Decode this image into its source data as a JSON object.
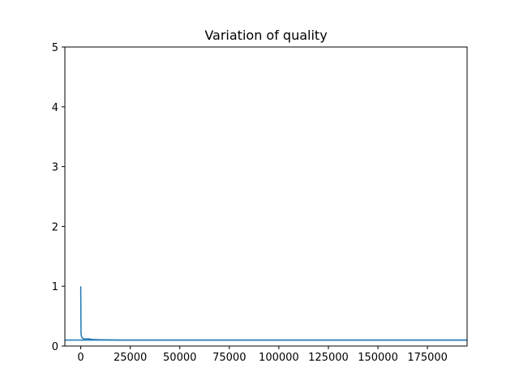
{
  "chart_data": {
    "type": "line",
    "title": "Variation of quality",
    "xlabel": "",
    "ylabel": "",
    "xlim": [
      -8000,
      195000
    ],
    "ylim": [
      0,
      5
    ],
    "xticks": [
      0,
      25000,
      50000,
      75000,
      100000,
      125000,
      150000,
      175000
    ],
    "yticks": [
      0,
      1,
      2,
      3,
      4,
      5
    ],
    "grid": false,
    "legend": "none",
    "reference_line": {
      "y": 0.1,
      "color": "#1f77b4"
    },
    "series": [
      {
        "color": "#1f77b4",
        "x": [
          0,
          150,
          300,
          600,
          1000,
          1500,
          2500,
          4000,
          6000,
          10000,
          20000,
          40000,
          80000,
          120000,
          160000,
          195000
        ],
        "y": [
          1.0,
          0.22,
          0.17,
          0.14,
          0.13,
          0.12,
          0.12,
          0.12,
          0.11,
          0.105,
          0.1,
          0.1,
          0.1,
          0.1,
          0.1,
          0.1
        ]
      }
    ]
  }
}
